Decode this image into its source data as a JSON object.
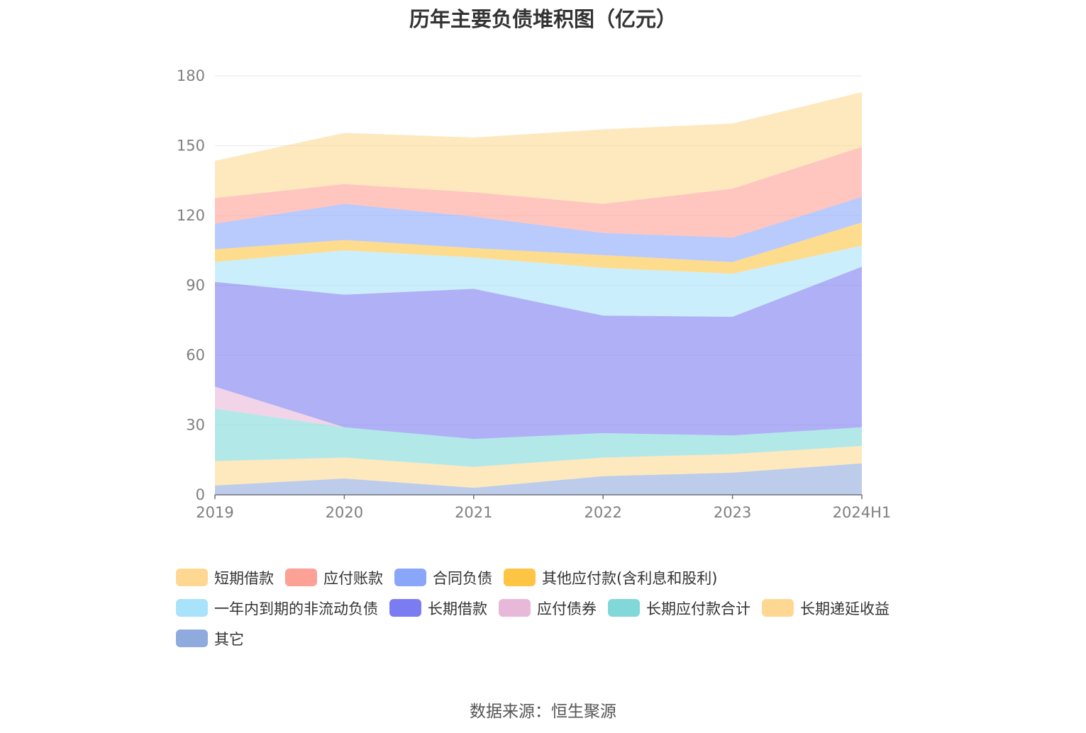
{
  "source": "数据来源：恒生聚源",
  "chart_data": {
    "type": "area",
    "stacked": true,
    "title": "历年主要负债堆积图（亿元）",
    "xlabel": "",
    "ylabel": "",
    "categories": [
      "2019",
      "2020",
      "2021",
      "2022",
      "2023",
      "2024H1"
    ],
    "ylim": [
      0,
      180
    ],
    "yticks": [
      0,
      30,
      60,
      90,
      120,
      150,
      180
    ],
    "grid": true,
    "legend_position": "bottom",
    "series": [
      {
        "name": "其它",
        "color": "#8faadc",
        "values": [
          4,
          7,
          3,
          8,
          9.5,
          13.5
        ]
      },
      {
        "name": "长期递延收益",
        "color": "#fed893",
        "values": [
          10.5,
          9,
          9,
          8,
          8,
          7.5
        ]
      },
      {
        "name": "长期应付款合计",
        "color": "#80d8d8",
        "values": [
          22.5,
          13,
          12,
          10.5,
          8,
          8
        ]
      },
      {
        "name": "应付债券",
        "color": "#e7b8d8",
        "values": [
          9.5,
          0,
          0,
          0,
          0,
          0
        ]
      },
      {
        "name": "长期借款",
        "color": "#7b7cf2",
        "values": [
          45,
          57,
          64.5,
          50.5,
          51,
          69
        ]
      },
      {
        "name": "一年内到期的非流动负债",
        "color": "#a9e2fb",
        "values": [
          8.5,
          19,
          13.5,
          20.5,
          18.5,
          9
        ]
      },
      {
        "name": "其他应付款(含利息和股利)",
        "color": "#fec443",
        "values": [
          5.5,
          4.5,
          4,
          5.5,
          5,
          10
        ]
      },
      {
        "name": "合同负债",
        "color": "#8aa6fb",
        "values": [
          11,
          15.5,
          13.5,
          9.5,
          10.5,
          11
        ]
      },
      {
        "name": "应付账款",
        "color": "#fda095",
        "values": [
          11,
          8.5,
          10.5,
          12.5,
          21,
          21.5
        ]
      },
      {
        "name": "短期借款",
        "color": "#fed893",
        "values": [
          16,
          22,
          23.5,
          32,
          28,
          23.5
        ]
      }
    ]
  },
  "legend_order": [
    "短期借款",
    "应付账款",
    "合同负债",
    "其他应付款(含利息和股利)",
    "一年内到期的非流动负债",
    "长期借款",
    "应付债券",
    "长期应付款合计",
    "长期递延收益",
    "其它"
  ]
}
